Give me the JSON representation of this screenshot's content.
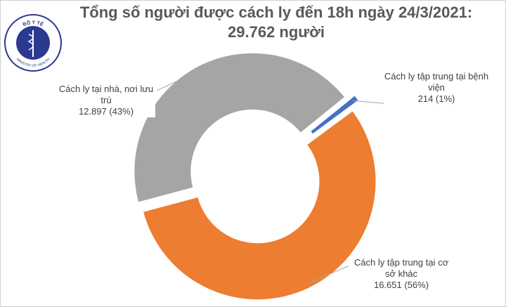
{
  "chart_data": {
    "type": "donut",
    "title": "Tổng số người được cách ly đến 18h ngày 24/3/2021:",
    "subtitle": "29.762 người",
    "categories": [
      "Cách ly tập trung tại bệnh viện",
      "Cách ly tập trung tại cơ sở khác",
      "Cách ly tại nhà, nơi lưu trú"
    ],
    "values": [
      214,
      16651,
      12897
    ],
    "value_labels": [
      "214 (1%)",
      "16.651 (56%)",
      "12.897 (43%)"
    ],
    "colors": [
      "#4472c4",
      "#ed7d31",
      "#a5a5a5"
    ]
  },
  "logo": {
    "top_text": "BỘ Y TẾ",
    "bottom_text": "MINISTRY OF HEALTH"
  }
}
